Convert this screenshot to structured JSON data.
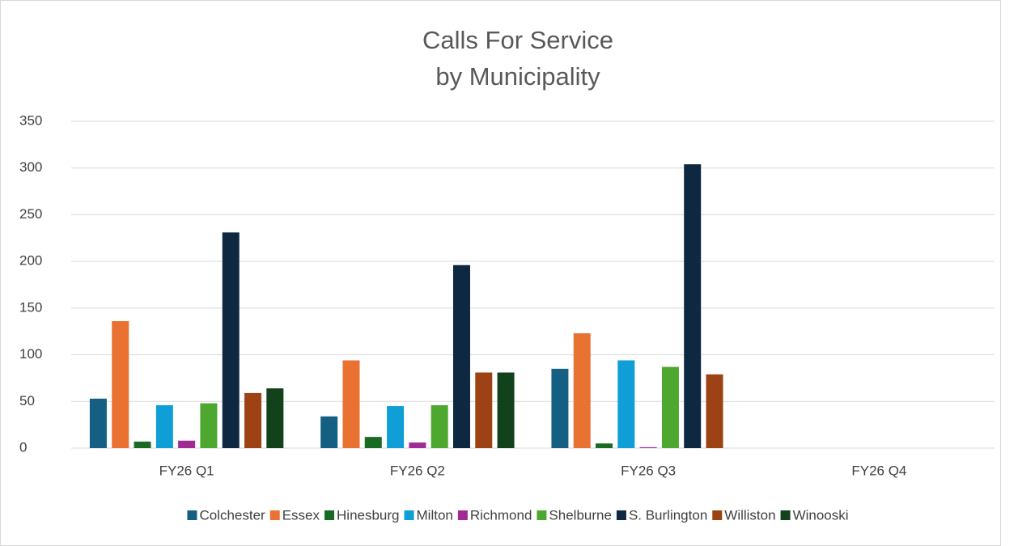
{
  "chart_data": {
    "type": "bar",
    "title": [
      "Calls For Service",
      "by Municipality"
    ],
    "categories": [
      "FY26 Q1",
      "FY26 Q2",
      "FY26 Q3",
      "FY26 Q4"
    ],
    "series": [
      {
        "name": "Colchester",
        "color": "#156082",
        "values": [
          53,
          34,
          85,
          null
        ]
      },
      {
        "name": "Essex",
        "color": "#e97132",
        "values": [
          136,
          94,
          123,
          null
        ]
      },
      {
        "name": "Hinesburg",
        "color": "#196b24",
        "values": [
          7,
          12,
          5,
          null
        ]
      },
      {
        "name": "Milton",
        "color": "#0f9ed5",
        "values": [
          46,
          45,
          94,
          null
        ]
      },
      {
        "name": "Richmond",
        "color": "#a02b93",
        "values": [
          8,
          6,
          1,
          null
        ]
      },
      {
        "name": "Shelburne",
        "color": "#4ea72e",
        "values": [
          48,
          46,
          87,
          null
        ]
      },
      {
        "name": "S. Burlington",
        "color": "#0e2841",
        "values": [
          231,
          196,
          304,
          null
        ]
      },
      {
        "name": "Williston",
        "color": "#9c4214",
        "values": [
          59,
          81,
          79,
          null
        ]
      },
      {
        "name": "Winooski",
        "color": "#11421b",
        "values": [
          64,
          81,
          null,
          null
        ]
      }
    ],
    "ylim": [
      0,
      350
    ],
    "yticks": [
      0,
      50,
      100,
      150,
      200,
      250,
      300,
      350
    ],
    "grid": true,
    "legend": "bottom"
  }
}
